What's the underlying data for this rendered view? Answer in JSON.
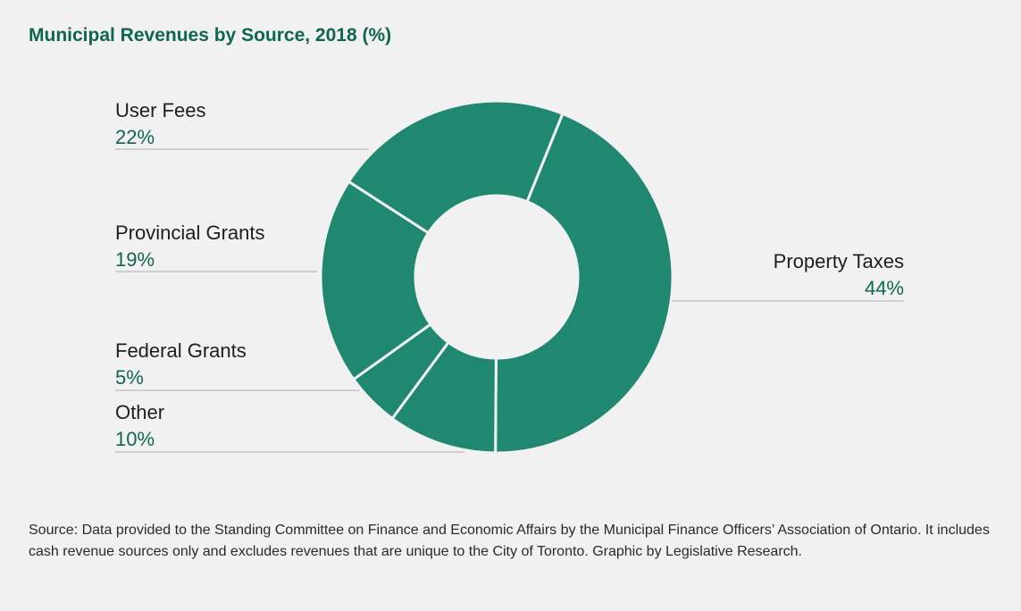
{
  "chart_data": {
    "type": "pie",
    "variant": "donut",
    "title": "Municipal Revenues by Source, 2018 (%)",
    "slices": [
      {
        "label": "Property Taxes",
        "value": 44,
        "value_label": "44%"
      },
      {
        "label": "Other",
        "value": 10,
        "value_label": "10%"
      },
      {
        "label": "Federal Grants",
        "value": 5,
        "value_label": "5%"
      },
      {
        "label": "Provincial Grants",
        "value": 19,
        "value_label": "19%"
      },
      {
        "label": "User Fees",
        "value": 22,
        "value_label": "22%"
      }
    ],
    "colors": {
      "slice": "#208770",
      "separator": "#f2f1f1",
      "value_text": "#0f6650",
      "title": "#0f6650"
    },
    "legend": "none",
    "source": "Source: Data provided to the Standing Committee on Finance and Economic Affairs by the Municipal Finance Officers’ Association of Ontario. It includes cash revenue sources only and excludes revenues that are unique to the City of Toronto. Graphic by Legislative Research."
  }
}
